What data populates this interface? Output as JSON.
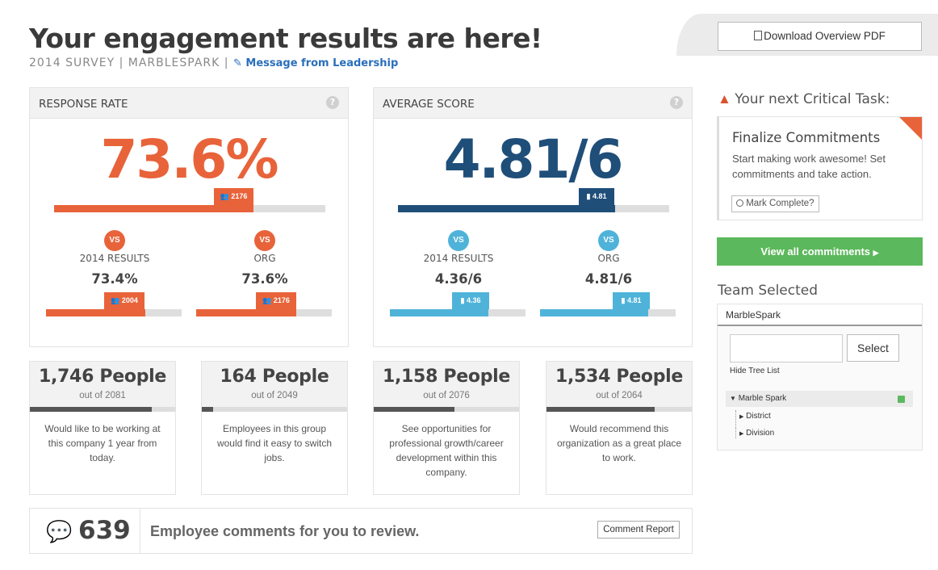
{
  "header": {
    "title": "Your engagement results are here!",
    "subtitle": "2014 SURVEY | MARBLESPARK |",
    "leadership_link": "Message from Leadership",
    "pdf_button": "Download Overview PDF"
  },
  "response_rate": {
    "heading": "RESPONSE RATE",
    "help": "?",
    "value": "73.6%",
    "fill": 0.736,
    "count": "2176",
    "color": "#e8633a",
    "compare": [
      {
        "vs": "VS",
        "label": "2014 RESULTS",
        "value": "73.4%",
        "count": "2004",
        "fill": 0.734
      },
      {
        "vs": "VS",
        "label": "ORG",
        "value": "73.6%",
        "count": "2176",
        "fill": 0.736
      }
    ]
  },
  "average_score": {
    "heading": "AVERAGE SCORE",
    "help": "?",
    "value": "4.81/6",
    "fill": 0.8,
    "count": "4.81",
    "color": "#1f4e79",
    "compare_color": "#4fb3d9",
    "compare": [
      {
        "vs": "VS",
        "label": "2014 RESULTS",
        "value": "4.36/6",
        "count": "4.36",
        "fill": 0.727
      },
      {
        "vs": "VS",
        "label": "ORG",
        "value": "4.81/6",
        "count": "4.81",
        "fill": 0.8
      }
    ]
  },
  "stats": [
    {
      "people": "1,746 People",
      "of": "out of 2081",
      "fill": 0.839,
      "desc": "Would like to be working at this company 1 year from today."
    },
    {
      "people": "164 People",
      "of": "out of 2049",
      "fill": 0.08,
      "desc": "Employees in this group would find it easy to switch jobs."
    },
    {
      "people": "1,158 People",
      "of": "out of 2076",
      "fill": 0.558,
      "desc": "See opportunities for professional growth/career development within this company."
    },
    {
      "people": "1,534 People",
      "of": "out of 2064",
      "fill": 0.743,
      "desc": "Would recommend this organization as a great place to work."
    }
  ],
  "comments": {
    "count": "639",
    "text": "Employee comments for you to review.",
    "report_button": "Comment Report"
  },
  "sidebar": {
    "critical_heading": "Your next Critical Task:",
    "task_title": "Finalize Commitments",
    "task_desc": "Start making work awesome! Set commitments and take action.",
    "mark_complete": "Mark Complete?",
    "view_commitments": "View all commitments",
    "team_heading": "Team Selected",
    "team_name": "MarbleSpark",
    "search_placeholder": "",
    "select_button": "Select",
    "hide_tree": "Hide Tree List",
    "tree": {
      "root": "Marble Spark",
      "children": [
        "District",
        "Division"
      ]
    }
  }
}
